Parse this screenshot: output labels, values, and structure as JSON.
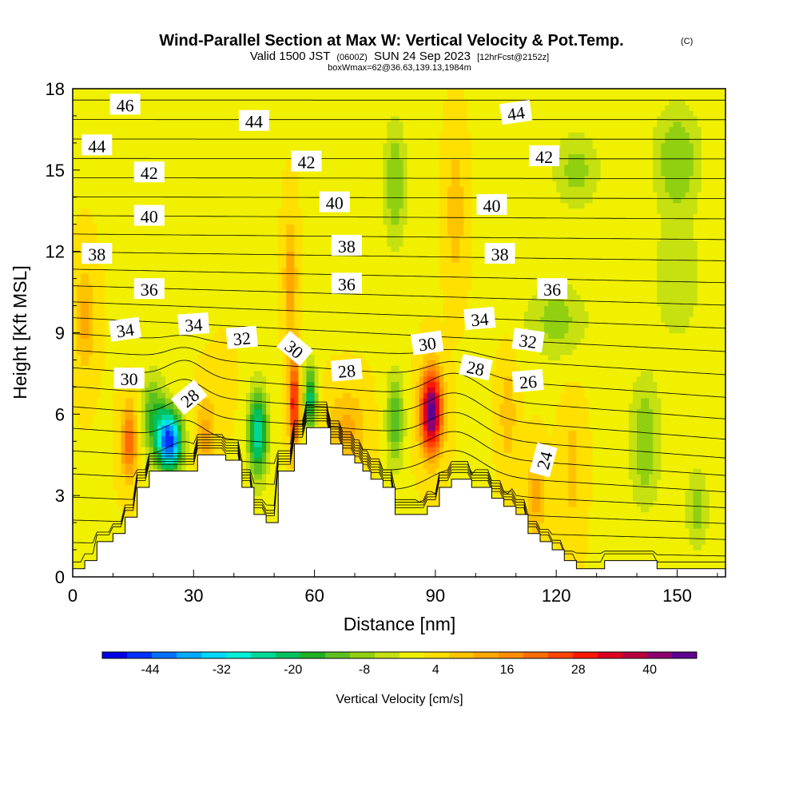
{
  "chart_data": {
    "type": "heatmap",
    "title": "Wind-Parallel Section at Max W: Vertical Velocity & Pot.Temp.",
    "title_mark": "(C)",
    "subtitle": {
      "valid": "Valid 1500 JST",
      "utc": "(0600Z)",
      "date": "SUN 24 Sep 2023",
      "forecast": "[12hrFcst@2152z]"
    },
    "note": "boxWmax=62@36.63,139.13,1984m",
    "xlabel": "Distance [nm]",
    "ylabel": "Height [Kft MSL]",
    "xlim": [
      0,
      162
    ],
    "ylim": [
      0,
      18
    ],
    "x_ticks": [
      0,
      30,
      60,
      90,
      120,
      150
    ],
    "y_ticks": [
      0,
      3,
      6,
      9,
      12,
      15,
      18
    ],
    "colorbar": {
      "label": "Vertical Velocity [cm/s]",
      "ticks": [
        -44,
        -32,
        -20,
        -8,
        4,
        16,
        28,
        40
      ],
      "min": -50,
      "max": 50,
      "colors": [
        "#0000e6",
        "#0030ff",
        "#0070ff",
        "#00aaff",
        "#00d8ff",
        "#00f0d8",
        "#00d896",
        "#00c060",
        "#22b022",
        "#5cc020",
        "#90d010",
        "#c6e010",
        "#f0f000",
        "#ffe000",
        "#ffc400",
        "#ffa800",
        "#ff8c00",
        "#ff6c00",
        "#ff4400",
        "#ff1800",
        "#e00020",
        "#b80040",
        "#8c0070",
        "#600090"
      ]
    },
    "terrain_profile": [
      [
        0,
        0.3
      ],
      [
        3,
        0.3
      ],
      [
        3,
        0.6
      ],
      [
        6,
        0.6
      ],
      [
        6,
        1.3
      ],
      [
        10,
        1.3
      ],
      [
        10,
        1.6
      ],
      [
        13,
        1.6
      ],
      [
        13,
        2.2
      ],
      [
        16,
        2.2
      ],
      [
        16,
        3.3
      ],
      [
        19,
        3.3
      ],
      [
        19,
        3.9
      ],
      [
        31,
        3.9
      ],
      [
        31,
        4.5
      ],
      [
        38,
        4.5
      ],
      [
        38,
        4.3
      ],
      [
        42,
        4.3
      ],
      [
        42,
        3.3
      ],
      [
        45,
        3.3
      ],
      [
        45,
        2.3
      ],
      [
        48,
        2.3
      ],
      [
        48,
        2.0
      ],
      [
        51,
        2.0
      ],
      [
        51,
        3.9
      ],
      [
        55,
        3.9
      ],
      [
        55,
        4.9
      ],
      [
        58,
        4.9
      ],
      [
        58,
        5.5
      ],
      [
        64,
        5.5
      ],
      [
        64,
        4.9
      ],
      [
        67,
        4.9
      ],
      [
        67,
        4.5
      ],
      [
        70,
        4.5
      ],
      [
        70,
        4.2
      ],
      [
        72,
        4.2
      ],
      [
        72,
        3.9
      ],
      [
        74,
        3.9
      ],
      [
        74,
        3.6
      ],
      [
        77,
        3.6
      ],
      [
        77,
        3.3
      ],
      [
        80,
        3.3
      ],
      [
        80,
        2.3
      ],
      [
        88,
        2.3
      ],
      [
        88,
        2.6
      ],
      [
        91,
        2.6
      ],
      [
        91,
        3.3
      ],
      [
        94,
        3.3
      ],
      [
        94,
        3.6
      ],
      [
        99,
        3.6
      ],
      [
        99,
        3.3
      ],
      [
        104,
        3.3
      ],
      [
        104,
        2.9
      ],
      [
        107,
        2.9
      ],
      [
        107,
        2.6
      ],
      [
        110,
        2.6
      ],
      [
        110,
        2.3
      ],
      [
        113,
        2.3
      ],
      [
        113,
        1.6
      ],
      [
        116,
        1.6
      ],
      [
        116,
        1.3
      ],
      [
        119,
        1.3
      ],
      [
        119,
        1.0
      ],
      [
        122,
        1.0
      ],
      [
        122,
        0.6
      ],
      [
        125,
        0.6
      ],
      [
        125,
        0.3
      ],
      [
        132,
        0.3
      ],
      [
        132,
        0.6
      ],
      [
        145,
        0.6
      ],
      [
        145,
        0.3
      ],
      [
        162,
        0.3
      ]
    ],
    "w_field": {
      "background": 4,
      "cells": [
        {
          "x": 3,
          "y": 9.5,
          "sx": 2.5,
          "sy": 2.0,
          "w": 14
        },
        {
          "x": 14,
          "y": 5.0,
          "sx": 2.0,
          "sy": 1.3,
          "w": 24
        },
        {
          "x": 24,
          "y": 5.0,
          "sx": 3.0,
          "sy": 1.1,
          "w": -44
        },
        {
          "x": 20,
          "y": 6.0,
          "sx": 3.0,
          "sy": 1.5,
          "w": -12
        },
        {
          "x": 33,
          "y": 5.2,
          "sx": 2.3,
          "sy": 1.5,
          "w": 14
        },
        {
          "x": 37,
          "y": 7.0,
          "sx": 2.5,
          "sy": 1.2,
          "w": 8
        },
        {
          "x": 46,
          "y": 5.3,
          "sx": 2.5,
          "sy": 1.6,
          "w": -24
        },
        {
          "x": 55,
          "y": 6.4,
          "sx": 1.2,
          "sy": 1.8,
          "w": 34
        },
        {
          "x": 54,
          "y": 11.0,
          "sx": 1.5,
          "sy": 2.2,
          "w": 16
        },
        {
          "x": 59,
          "y": 6.6,
          "sx": 1.5,
          "sy": 1.3,
          "w": -20
        },
        {
          "x": 68,
          "y": 5.5,
          "sx": 4.5,
          "sy": 1.4,
          "w": 14
        },
        {
          "x": 80,
          "y": 5.8,
          "sx": 2.2,
          "sy": 1.8,
          "w": -12
        },
        {
          "x": 89,
          "y": 6.1,
          "sx": 2.6,
          "sy": 1.5,
          "w": 50
        },
        {
          "x": 95,
          "y": 13.5,
          "sx": 2.2,
          "sy": 2.5,
          "w": 12
        },
        {
          "x": 108,
          "y": 6.0,
          "sx": 2.0,
          "sy": 2.0,
          "w": 12
        },
        {
          "x": 115,
          "y": 3.0,
          "sx": 2.5,
          "sy": 1.5,
          "w": 14
        },
        {
          "x": 124,
          "y": 4.0,
          "sx": 2.5,
          "sy": 2.5,
          "w": 10
        },
        {
          "x": 130,
          "y": 3.5,
          "sx": 2.5,
          "sy": 2.2,
          "w": 4
        },
        {
          "x": 142,
          "y": 5.0,
          "sx": 4.0,
          "sy": 2.5,
          "w": -8
        },
        {
          "x": 155,
          "y": 2.5,
          "sx": 3.0,
          "sy": 1.5,
          "w": -6
        },
        {
          "x": 80,
          "y": 14.5,
          "sx": 3.0,
          "sy": 2.5,
          "w": -8
        },
        {
          "x": 125,
          "y": 15.0,
          "sx": 6.0,
          "sy": 1.5,
          "w": -6
        },
        {
          "x": 150,
          "y": 15.5,
          "sx": 6.0,
          "sy": 2.0,
          "w": -8
        },
        {
          "x": 120,
          "y": 9.5,
          "sx": 8.0,
          "sy": 1.5,
          "w": -6
        },
        {
          "x": 150,
          "y": 11.0,
          "sx": 6.0,
          "sy": 2.5,
          "w": -4
        }
      ]
    },
    "isentropes": {
      "base_theta": 22,
      "interval": 1,
      "levels": [
        22,
        23,
        24,
        25,
        26,
        27,
        28,
        29,
        30,
        31,
        32,
        33,
        34,
        35,
        36,
        37,
        38,
        39,
        40,
        41,
        42,
        43,
        44,
        45,
        46
      ],
      "labels": [
        {
          "text": "46",
          "x": 13,
          "y": 17.4,
          "angle": 0
        },
        {
          "text": "44",
          "x": 6,
          "y": 15.9,
          "angle": 0
        },
        {
          "text": "44",
          "x": 45,
          "y": 16.8,
          "angle": 0
        },
        {
          "text": "44",
          "x": 110,
          "y": 17.1,
          "angle": -8
        },
        {
          "text": "42",
          "x": 19,
          "y": 14.9,
          "angle": 0
        },
        {
          "text": "42",
          "x": 58,
          "y": 15.3,
          "angle": 0
        },
        {
          "text": "42",
          "x": 117,
          "y": 15.5,
          "angle": 0
        },
        {
          "text": "40",
          "x": 19,
          "y": 13.3,
          "angle": 0
        },
        {
          "text": "40",
          "x": 65,
          "y": 13.8,
          "angle": 0
        },
        {
          "text": "40",
          "x": 104,
          "y": 13.7,
          "angle": 0
        },
        {
          "text": "38",
          "x": 6,
          "y": 11.9,
          "angle": 0
        },
        {
          "text": "38",
          "x": 68,
          "y": 12.2,
          "angle": 0
        },
        {
          "text": "38",
          "x": 106,
          "y": 11.9,
          "angle": 0
        },
        {
          "text": "36",
          "x": 19,
          "y": 10.6,
          "angle": 0
        },
        {
          "text": "36",
          "x": 68,
          "y": 10.8,
          "angle": 0
        },
        {
          "text": "36",
          "x": 119,
          "y": 10.6,
          "angle": 0
        },
        {
          "text": "34",
          "x": 13,
          "y": 9.1,
          "angle": -8
        },
        {
          "text": "34",
          "x": 30,
          "y": 9.3,
          "angle": -4
        },
        {
          "text": "34",
          "x": 101,
          "y": 9.5,
          "angle": -5
        },
        {
          "text": "32",
          "x": 42,
          "y": 8.8,
          "angle": -5
        },
        {
          "text": "32",
          "x": 113,
          "y": 8.7,
          "angle": 8
        },
        {
          "text": "30",
          "x": 14,
          "y": 7.3,
          "angle": 0
        },
        {
          "text": "30",
          "x": 55,
          "y": 8.4,
          "angle": 40
        },
        {
          "text": "30",
          "x": 88,
          "y": 8.6,
          "angle": -8
        },
        {
          "text": "28",
          "x": 29,
          "y": 6.6,
          "angle": -40
        },
        {
          "text": "28",
          "x": 68,
          "y": 7.6,
          "angle": -5
        },
        {
          "text": "28",
          "x": 100,
          "y": 7.7,
          "angle": 12
        },
        {
          "text": "26",
          "x": 113,
          "y": 7.2,
          "angle": -5
        },
        {
          "text": "24",
          "x": 117,
          "y": 4.3,
          "angle": -75
        }
      ]
    }
  }
}
